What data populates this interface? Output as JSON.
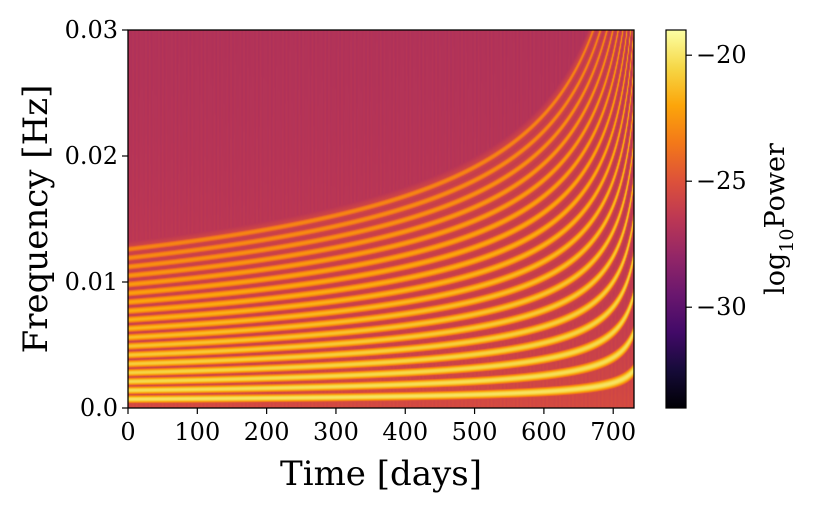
{
  "chart_data": {
    "type": "heatmap",
    "title": "",
    "xlabel": "Time [days]",
    "ylabel": "Frequency [Hz]",
    "xlim": [
      0,
      730
    ],
    "ylim": [
      0,
      0.03
    ],
    "x_ticks": [
      0,
      100,
      200,
      300,
      400,
      500,
      600,
      700
    ],
    "x_tick_labels": [
      "0",
      "100",
      "200",
      "300",
      "400",
      "500",
      "600",
      "700"
    ],
    "y_ticks": [
      0.0,
      0.01,
      0.02,
      0.03
    ],
    "y_tick_labels": [
      "0.0",
      "0.01",
      "0.02",
      "0.03"
    ],
    "colormap": "inferno",
    "colorbar": {
      "label_main": "log",
      "label_sub": "10",
      "label_tail": "Power",
      "vmin": -34,
      "vmax": -19,
      "ticks": [
        -30,
        -25,
        -20
      ],
      "tick_labels": [
        "−30",
        "−25",
        "−20"
      ]
    },
    "background_log_power": -27,
    "harmonics": {
      "count": 18,
      "base_frequency_start_hz": 0.0007,
      "coalescence_time_days": 745,
      "chirp_exponent": -0.375,
      "peak_log_power_low_harmonics": -20,
      "peak_log_power_high_harmonics": -23
    },
    "grid": false
  }
}
